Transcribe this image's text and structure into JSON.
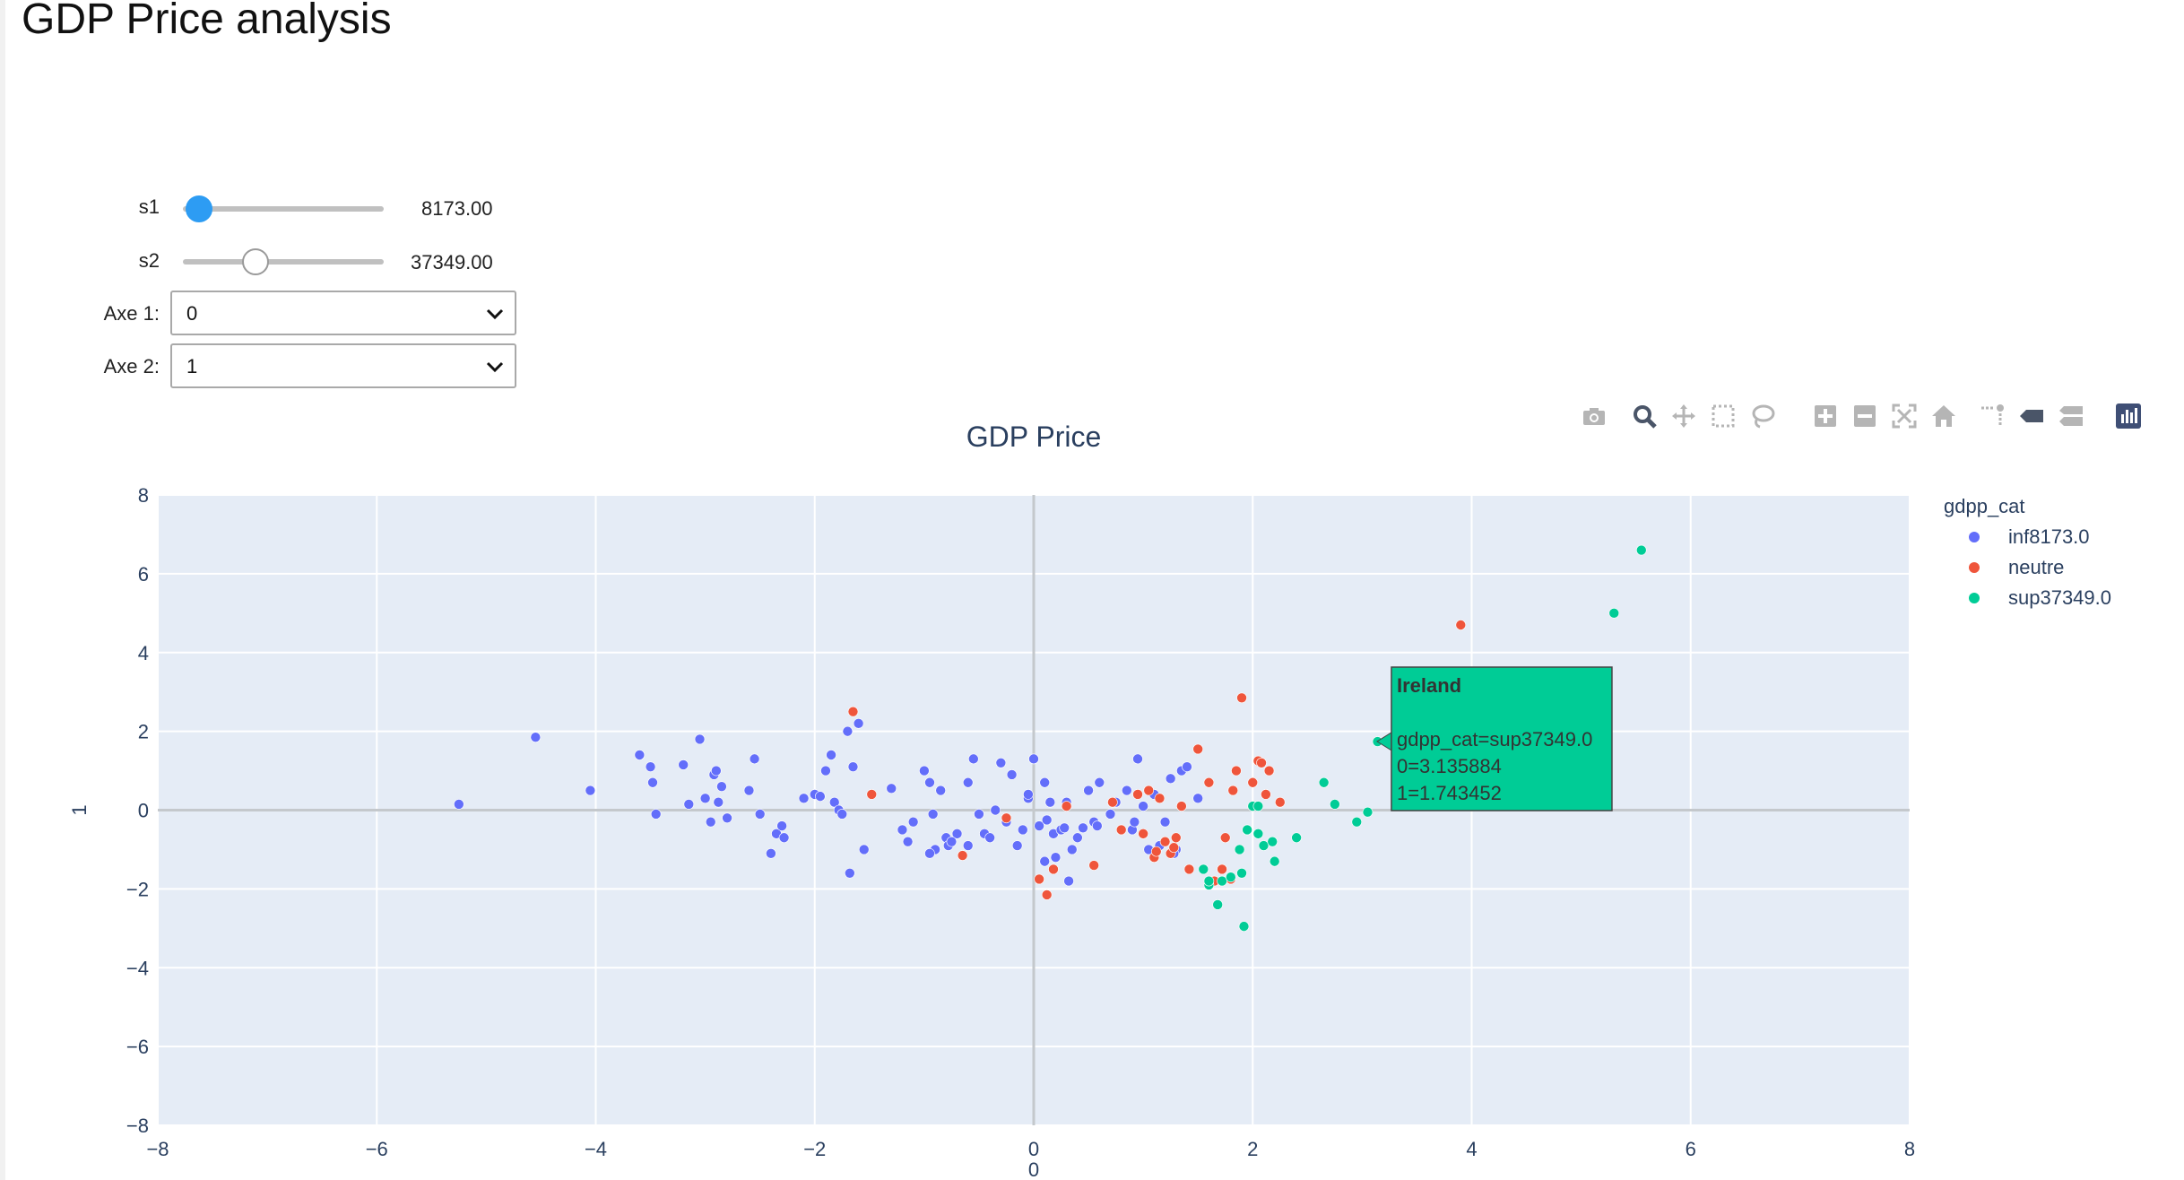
{
  "page": {
    "title": "GDP Price analysis"
  },
  "controls": {
    "s1": {
      "label": "s1",
      "value_text": "8173.00",
      "fraction": 0.08
    },
    "s2": {
      "label": "s2",
      "value_text": "37349.00",
      "fraction": 0.36
    },
    "axe1": {
      "label": "Axe 1:",
      "value": "0"
    },
    "axe2": {
      "label": "Axe 2:",
      "value": "1"
    }
  },
  "modebar": {
    "icons": [
      "camera-icon",
      "zoom-icon",
      "pan-icon",
      "box-select-icon",
      "lasso-select-icon",
      "zoom-in-icon",
      "zoom-out-icon",
      "autoscale-icon",
      "reset-axes-icon",
      "spike-lines-icon",
      "hover-closest-icon",
      "hover-compare-icon",
      "plotly-logo-icon"
    ]
  },
  "colors": {
    "inf": "#636efa",
    "neutre": "#ef553b",
    "sup": "#00cc96",
    "plot_bg": "#e5ecf6",
    "slider_active": "#2d9cf3"
  },
  "chart_data": {
    "type": "scatter",
    "title": "GDP Price",
    "xlabel": "0",
    "ylabel": "1",
    "xlim": [
      -8,
      8
    ],
    "ylim": [
      -8,
      8
    ],
    "xticks": [
      -8,
      -6,
      -4,
      -2,
      0,
      2,
      4,
      6,
      8
    ],
    "yticks": [
      -8,
      -6,
      -4,
      -2,
      0,
      2,
      4,
      6,
      8
    ],
    "grid": true,
    "legend": {
      "title": "gdpp_cat",
      "position": "right"
    },
    "series": [
      {
        "name": "inf8173.0",
        "color": "#636efa",
        "x": [
          -5.25,
          -4.55,
          -4.05,
          -3.6,
          -3.5,
          -3.48,
          -3.45,
          -3.2,
          -3.15,
          -3.05,
          -3.0,
          -2.95,
          -2.92,
          -2.9,
          -2.88,
          -2.85,
          -2.8,
          -2.6,
          -2.55,
          -2.5,
          -2.4,
          -2.35,
          -2.3,
          -2.28,
          -2.1,
          -2.0,
          -1.95,
          -1.9,
          -1.85,
          -1.82,
          -1.78,
          -1.75,
          -1.7,
          -1.68,
          -1.65,
          -1.6,
          -1.55,
          -1.3,
          -1.2,
          -1.15,
          -1.1,
          -1.0,
          -0.95,
          -0.92,
          -0.9,
          -0.85,
          -0.8,
          -0.78,
          -0.7,
          -0.6,
          -0.55,
          -0.5,
          -0.45,
          -0.35,
          -0.3,
          -0.25,
          -0.2,
          -0.15,
          -0.05,
          0.0,
          0.05,
          0.1,
          0.12,
          0.15,
          0.18,
          0.2,
          0.25,
          0.3,
          0.35,
          0.4,
          0.45,
          0.5,
          0.55,
          0.6,
          0.7,
          0.75,
          0.85,
          0.9,
          0.92,
          0.95,
          1.0,
          1.05,
          1.1,
          1.15,
          1.2,
          1.25,
          1.3,
          1.35,
          1.4,
          1.5,
          0.0,
          0.1,
          -0.1,
          -0.4,
          -0.6,
          -0.75,
          -0.95,
          0.32,
          0.58,
          1.28,
          -1.65,
          -0.05,
          0.28
        ],
        "y": [
          0.15,
          1.85,
          0.5,
          1.4,
          1.1,
          0.7,
          -0.1,
          1.15,
          0.15,
          1.8,
          0.3,
          -0.3,
          0.9,
          1.0,
          0.2,
          0.6,
          -0.2,
          0.5,
          1.3,
          -0.1,
          -1.1,
          -0.6,
          -0.4,
          -0.7,
          0.3,
          0.4,
          0.35,
          1.0,
          1.4,
          0.2,
          0.0,
          -0.1,
          2.0,
          -1.6,
          1.1,
          2.2,
          -1.0,
          0.55,
          -0.5,
          -0.8,
          -0.3,
          1.0,
          0.7,
          -0.1,
          -1.0,
          0.5,
          -0.7,
          -0.9,
          -0.6,
          0.7,
          1.3,
          -0.1,
          -0.6,
          0.0,
          1.2,
          -0.3,
          0.9,
          -0.9,
          0.3,
          1.3,
          -0.4,
          0.7,
          -0.25,
          0.2,
          -0.6,
          -1.2,
          -0.5,
          0.2,
          -1.0,
          -0.7,
          -0.45,
          0.5,
          -0.3,
          0.7,
          -0.1,
          0.2,
          0.5,
          -0.5,
          -0.3,
          1.3,
          0.1,
          -1.0,
          0.4,
          -0.9,
          -0.3,
          0.8,
          -1.0,
          1.0,
          1.1,
          0.3,
          1.3,
          -1.3,
          -0.5,
          -0.7,
          -0.9,
          -0.8,
          -1.1,
          -1.8,
          -0.4,
          -1.1,
          1.1,
          0.4,
          -0.45
        ]
      },
      {
        "name": "neutre",
        "color": "#ef553b",
        "x": [
          -1.65,
          -1.48,
          -0.65,
          -0.25,
          0.05,
          0.12,
          0.18,
          0.3,
          0.55,
          0.72,
          0.8,
          0.95,
          1.0,
          1.05,
          1.1,
          1.15,
          1.2,
          1.25,
          1.3,
          1.35,
          1.42,
          1.5,
          1.6,
          1.65,
          1.72,
          1.75,
          1.8,
          1.82,
          1.85,
          1.9,
          1.95,
          2.0,
          2.05,
          2.08,
          2.12,
          2.15,
          2.25,
          3.9,
          1.28,
          1.12
        ],
        "y": [
          2.5,
          0.4,
          -1.15,
          -0.2,
          -1.75,
          -2.15,
          -1.5,
          0.1,
          -1.4,
          0.2,
          -0.5,
          0.4,
          -0.6,
          0.5,
          -1.2,
          0.3,
          -0.8,
          -1.1,
          -0.7,
          0.1,
          -1.5,
          1.55,
          0.7,
          -1.8,
          -1.5,
          -0.7,
          -1.75,
          0.5,
          1.0,
          2.85,
          -0.5,
          0.7,
          1.25,
          1.2,
          0.4,
          1.0,
          0.2,
          4.7,
          -0.95,
          -1.05
        ]
      },
      {
        "name": "sup37349.0",
        "color": "#00cc96",
        "x": [
          1.55,
          1.6,
          1.68,
          1.72,
          1.8,
          1.88,
          1.92,
          1.95,
          2.0,
          2.05,
          2.1,
          2.18,
          2.2,
          2.4,
          2.65,
          2.75,
          2.95,
          3.05,
          3.14,
          5.3,
          5.55,
          1.9,
          1.6,
          2.05
        ],
        "y": [
          -1.5,
          -1.9,
          -2.4,
          -1.8,
          -1.7,
          -1.0,
          -2.95,
          -0.5,
          0.1,
          -0.6,
          -0.9,
          -0.8,
          -1.3,
          -0.7,
          0.7,
          0.15,
          -0.3,
          -0.05,
          1.74,
          5.0,
          6.6,
          -1.6,
          -1.8,
          0.1
        ]
      }
    ],
    "hover": {
      "title": "Ireland",
      "lines": [
        "gdpp_cat=sup37349.0",
        "0=3.135884",
        "1=1.743452"
      ],
      "x": 3.135884,
      "y": 1.743452,
      "series": 2
    }
  }
}
